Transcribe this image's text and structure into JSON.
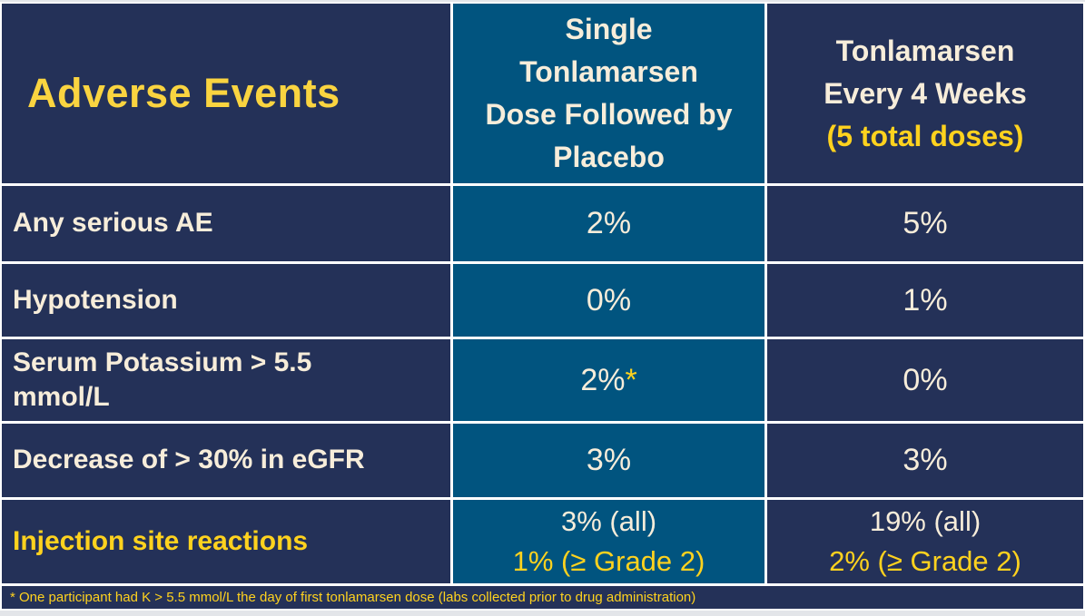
{
  "theme": {
    "navy": "#243158",
    "teal": "#01547F",
    "cream": "#F7EDDA",
    "gold": "#FFD21E",
    "title_gold": "#FAD440",
    "border": "#FFFFFF",
    "frame": "#E3E5E9"
  },
  "table": {
    "title": "Adverse Events",
    "columns": [
      {
        "lines": "Single\nTonlamarsen\nDose Followed by\nPlacebo"
      },
      {
        "lines": "Tonlamarsen\nEvery 4 Weeks",
        "subtitle": "(5 total doses)"
      }
    ],
    "rows": [
      {
        "label": "Any serious AE",
        "single_dose": "2%",
        "every4wk": "5%"
      },
      {
        "label": "Hypotension",
        "single_dose": "0%",
        "every4wk": "1%"
      },
      {
        "label": "Serum Potassium > 5.5\nmmol/L",
        "single_dose": "2%",
        "single_dose_marker": "*",
        "every4wk": "0%"
      },
      {
        "label": "Decrease of > 30% in eGFR",
        "single_dose": "3%",
        "every4wk": "3%"
      },
      {
        "label": "Injection site reactions",
        "single_dose_line1": "3% (all)",
        "single_dose_line2": "1% (≥ Grade 2)",
        "every4wk_line1": "19% (all)",
        "every4wk_line2": "2% (≥ Grade 2)"
      }
    ],
    "footnote": "* One participant had K > 5.5 mmol/L the day of first tonlamarsen dose (labs collected prior to drug administration)"
  },
  "chart_data": {
    "type": "table",
    "title": "Adverse Events",
    "columns": [
      "Adverse Events",
      "Single Tonlamarsen Dose Followed by Placebo",
      "Tonlamarsen Every 4 Weeks (5 total doses)"
    ],
    "rows": [
      [
        "Any serious AE",
        "2%",
        "5%"
      ],
      [
        "Hypotension",
        "0%",
        "1%"
      ],
      [
        "Serum Potassium > 5.5 mmol/L",
        "2%*",
        "0%"
      ],
      [
        "Decrease of > 30% in eGFR",
        "3%",
        "3%"
      ],
      [
        "Injection site reactions",
        "3% (all); 1% (≥ Grade 2)",
        "19% (all); 2% (≥ Grade 2)"
      ]
    ],
    "footnote": "* One participant had K > 5.5 mmol/L the day of first tonlamarsen dose (labs collected prior to drug administration)"
  }
}
